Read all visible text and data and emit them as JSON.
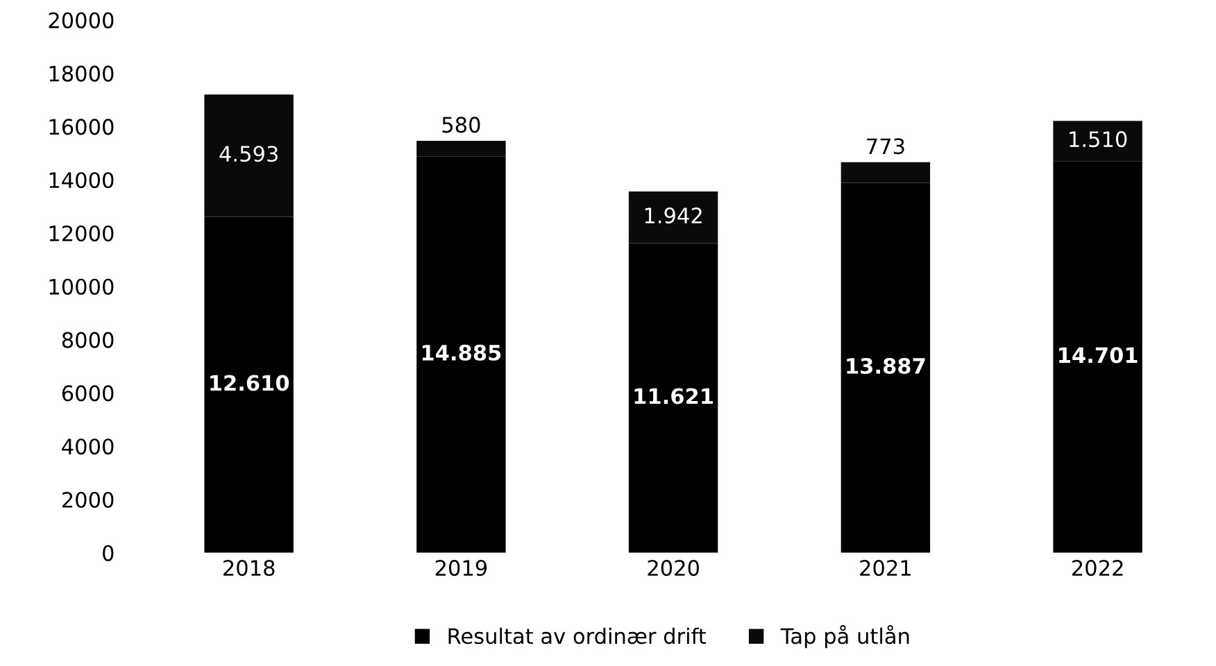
{
  "chart_data": {
    "type": "bar",
    "stacked": true,
    "categories": [
      "2018",
      "2019",
      "2020",
      "2021",
      "2022"
    ],
    "series": [
      {
        "name": "Resultat av ordinær drift",
        "color": "#000000",
        "values": [
          12610,
          14885,
          11621,
          13887,
          14701
        ],
        "value_labels": [
          "12.610",
          "14.885",
          "11.621",
          "13.887",
          "14.701"
        ]
      },
      {
        "name": "Tap på utlån",
        "color": "#0a0a0a",
        "values": [
          4593,
          580,
          1942,
          773,
          1510
        ],
        "value_labels": [
          "4.593",
          "580",
          "1.942",
          "773",
          "1.510"
        ]
      }
    ],
    "ylim": [
      0,
      20000
    ],
    "yticks": [
      0,
      2000,
      4000,
      6000,
      8000,
      10000,
      12000,
      14000,
      16000,
      18000,
      20000
    ],
    "grid": false,
    "legend": "bottom"
  }
}
